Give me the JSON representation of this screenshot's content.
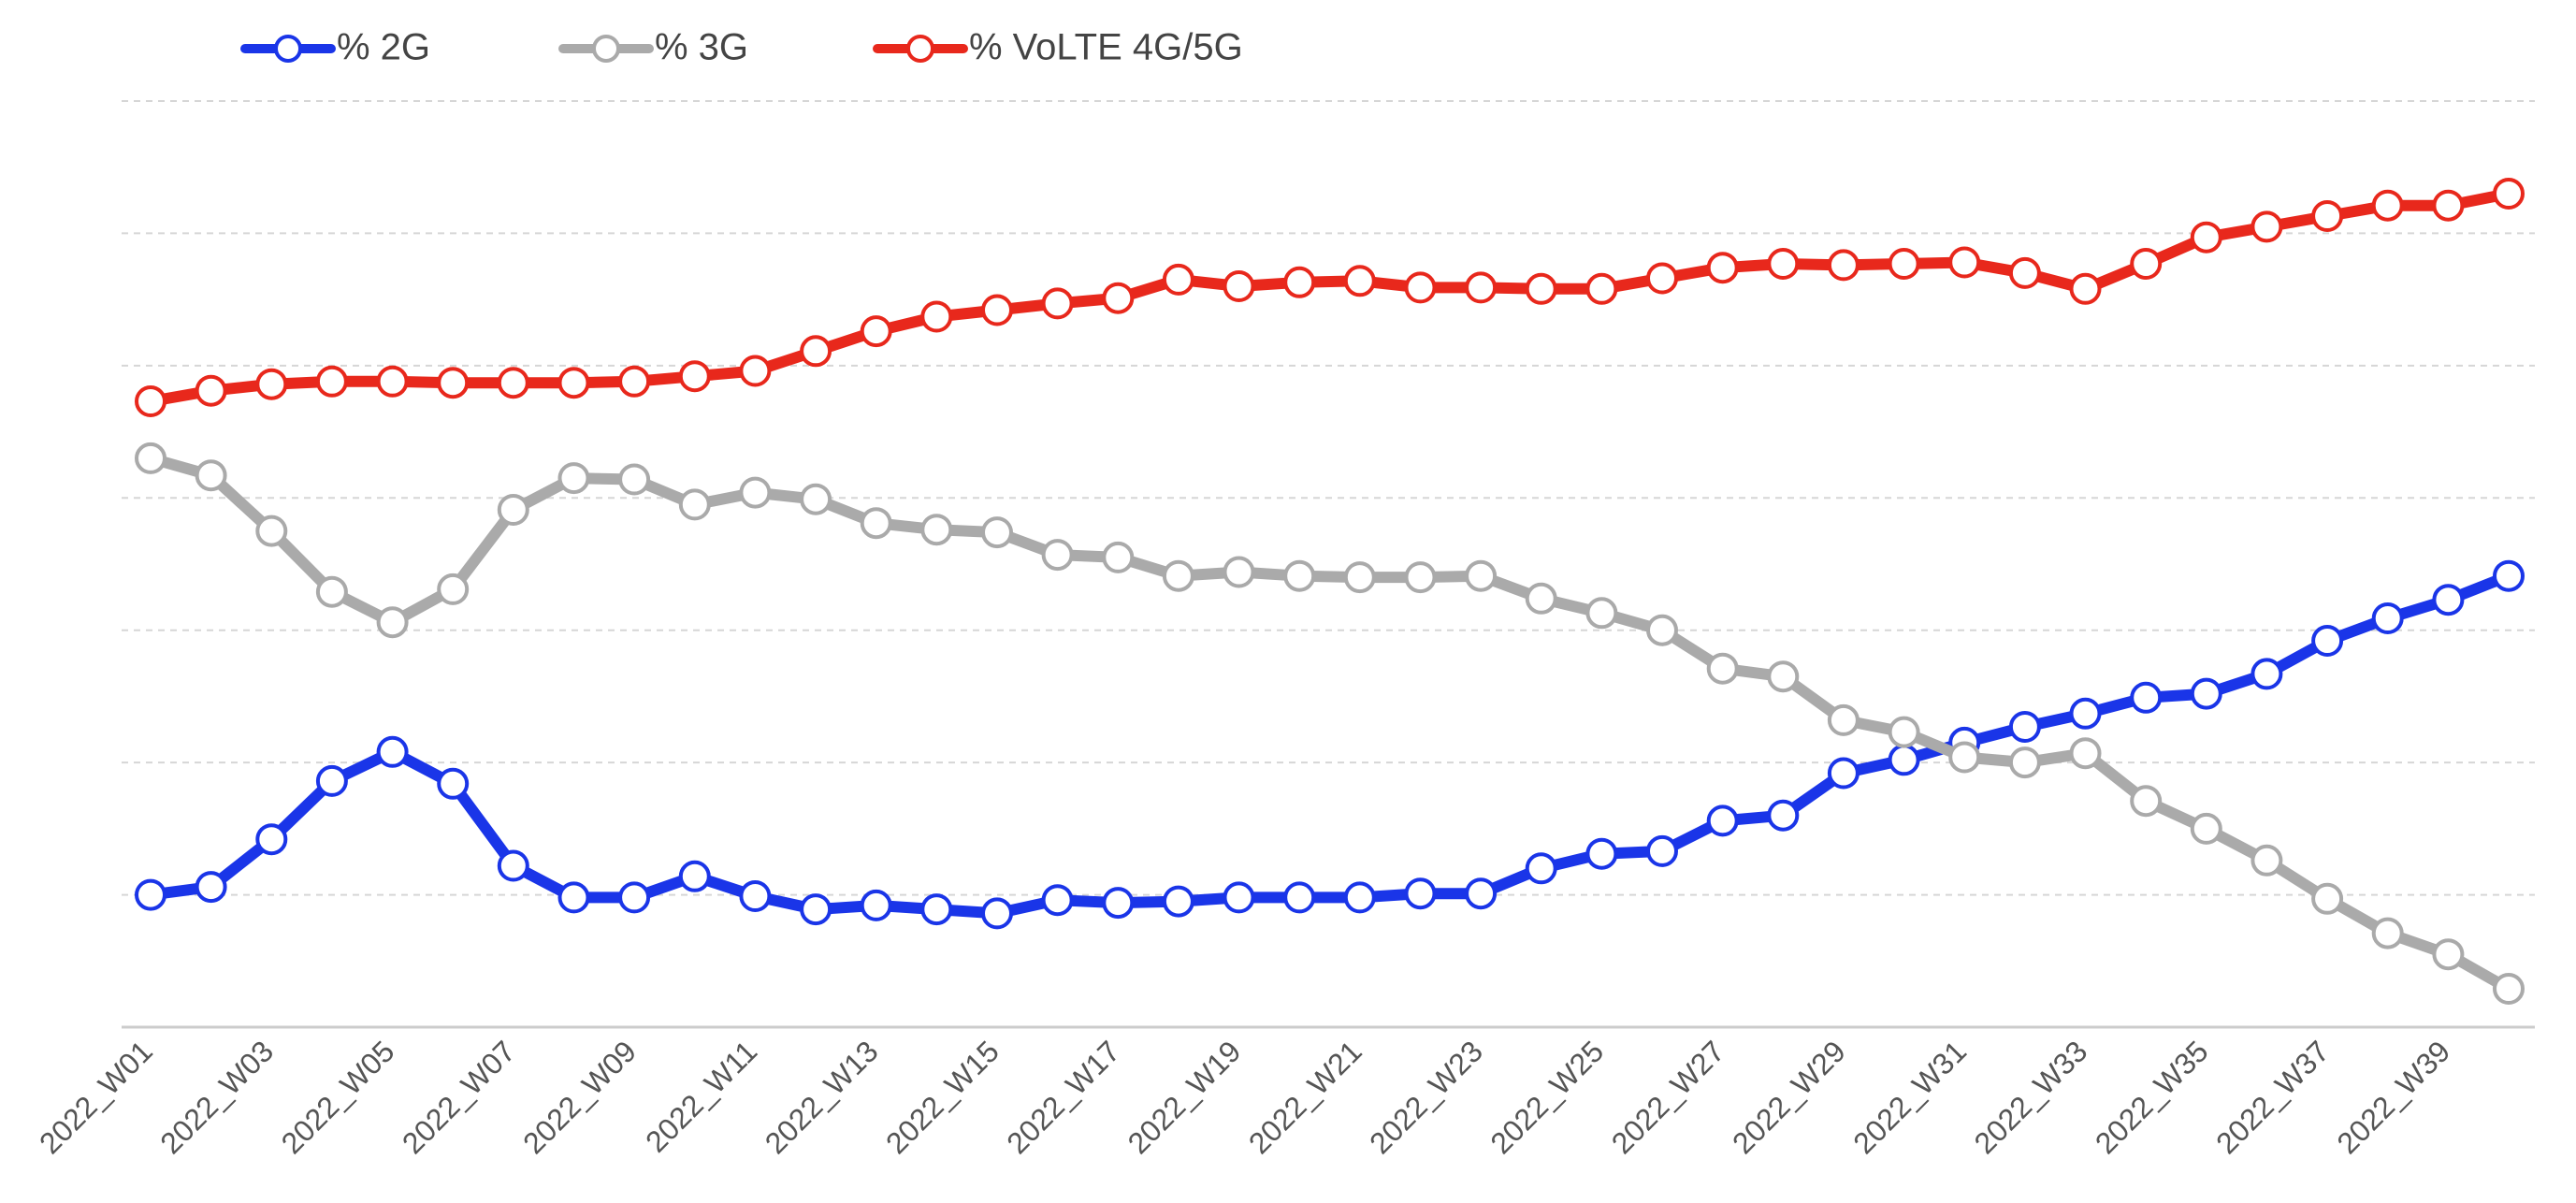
{
  "chart_data": {
    "type": "line",
    "title": "",
    "xlabel": "",
    "ylabel": "",
    "y_axis_labels_shown": false,
    "grid": "horizontal-dashed",
    "legend_position": "top-left",
    "ylim": [
      0,
      7
    ],
    "x": [
      "2022_W01",
      "2022_W02",
      "2022_W03",
      "2022_W04",
      "2022_W05",
      "2022_W06",
      "2022_W07",
      "2022_W08",
      "2022_W09",
      "2022_W10",
      "2022_W11",
      "2022_W12",
      "2022_W13",
      "2022_W14",
      "2022_W15",
      "2022_W16",
      "2022_W17",
      "2022_W18",
      "2022_W19",
      "2022_W20",
      "2022_W21",
      "2022_W22",
      "2022_W23",
      "2022_W24",
      "2022_W25",
      "2022_W26",
      "2022_W27",
      "2022_W28",
      "2022_W29",
      "2022_W30",
      "2022_W31",
      "2022_W32",
      "2022_W33",
      "2022_W34",
      "2022_W35",
      "2022_W36",
      "2022_W37",
      "2022_W38",
      "2022_W39",
      "2022_W40"
    ],
    "x_tick_labels": [
      "2022_W01",
      "2022_W03",
      "2022_W05",
      "2022_W07",
      "2022_W09",
      "2022_W11",
      "2022_W13",
      "2022_W15",
      "2022_W17",
      "2022_W19",
      "2022_W21",
      "2022_W23",
      "2022_W25",
      "2022_W27",
      "2022_W29",
      "2022_W31",
      "2022_W33",
      "2022_W35",
      "2022_W37",
      "2022_W39"
    ],
    "series": [
      {
        "name": "% 2G",
        "color": "#1a35e8",
        "values": [
          1.0,
          1.06,
          1.42,
          1.86,
          2.08,
          1.84,
          1.22,
          0.98,
          0.98,
          1.14,
          0.99,
          0.89,
          0.92,
          0.89,
          0.86,
          0.96,
          0.94,
          0.95,
          0.98,
          0.98,
          0.98,
          1.01,
          1.01,
          1.2,
          1.31,
          1.33,
          1.56,
          1.6,
          1.92,
          2.02,
          2.15,
          2.27,
          2.37,
          2.49,
          2.52,
          2.67,
          2.92,
          3.09,
          3.23,
          3.41
        ]
      },
      {
        "name": "% 3G",
        "color": "#aaaaaa",
        "values": [
          4.3,
          4.17,
          3.75,
          3.29,
          3.06,
          3.31,
          3.91,
          4.15,
          4.14,
          3.95,
          4.04,
          3.99,
          3.81,
          3.76,
          3.74,
          3.57,
          3.55,
          3.41,
          3.44,
          3.41,
          3.4,
          3.4,
          3.41,
          3.24,
          3.13,
          3.0,
          2.71,
          2.65,
          2.32,
          2.23,
          2.04,
          2.0,
          2.07,
          1.71,
          1.5,
          1.26,
          0.97,
          0.71,
          0.55,
          0.29
        ]
      },
      {
        "name": "% VoLTE 4G/5G",
        "color": "#e8281c",
        "values": [
          4.73,
          4.81,
          4.86,
          4.88,
          4.88,
          4.87,
          4.87,
          4.87,
          4.88,
          4.92,
          4.96,
          5.11,
          5.26,
          5.37,
          5.42,
          5.47,
          5.51,
          5.65,
          5.6,
          5.63,
          5.64,
          5.59,
          5.59,
          5.58,
          5.58,
          5.66,
          5.74,
          5.77,
          5.76,
          5.77,
          5.78,
          5.7,
          5.58,
          5.77,
          5.97,
          6.05,
          6.13,
          6.21,
          6.21,
          6.3
        ]
      }
    ]
  }
}
